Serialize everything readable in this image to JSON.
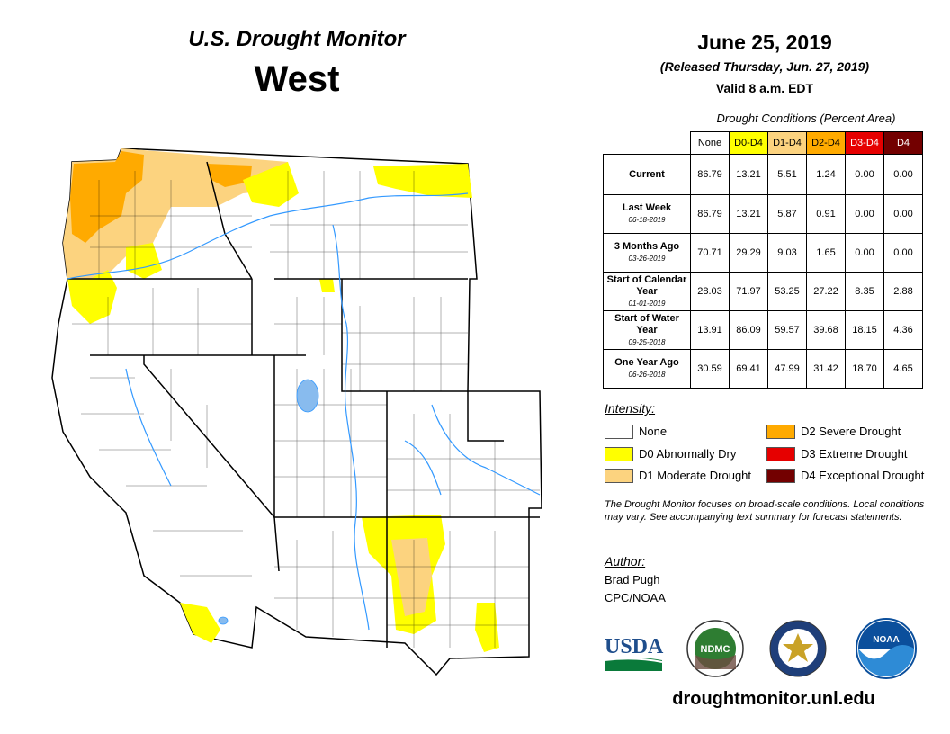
{
  "header": {
    "title": "U.S. Drought Monitor",
    "region": "West",
    "date": "June 25, 2019",
    "released": "(Released Thursday, Jun. 27, 2019)",
    "valid": "Valid 8 a.m. EDT"
  },
  "table": {
    "caption": "Drought Conditions (Percent Area)",
    "columns": [
      "None",
      "D0-D4",
      "D1-D4",
      "D2-D4",
      "D3-D4",
      "D4"
    ],
    "rows": [
      {
        "label": "Current",
        "sublabel": "",
        "values": [
          "86.79",
          "13.21",
          "5.51",
          "1.24",
          "0.00",
          "0.00"
        ]
      },
      {
        "label": "Last Week",
        "sublabel": "06-18-2019",
        "values": [
          "86.79",
          "13.21",
          "5.87",
          "0.91",
          "0.00",
          "0.00"
        ]
      },
      {
        "label": "3 Months Ago",
        "sublabel": "03-26-2019",
        "values": [
          "70.71",
          "29.29",
          "9.03",
          "1.65",
          "0.00",
          "0.00"
        ]
      },
      {
        "label": "Start of Calendar Year",
        "sublabel": "01-01-2019",
        "values": [
          "28.03",
          "71.97",
          "53.25",
          "27.22",
          "8.35",
          "2.88"
        ]
      },
      {
        "label": "Start of Water Year",
        "sublabel": "09-25-2018",
        "values": [
          "13.91",
          "86.09",
          "59.57",
          "39.68",
          "18.15",
          "4.36"
        ]
      },
      {
        "label": "One Year Ago",
        "sublabel": "06-26-2018",
        "values": [
          "30.59",
          "69.41",
          "47.99",
          "31.42",
          "18.70",
          "4.65"
        ]
      }
    ]
  },
  "legend": {
    "title": "Intensity:",
    "items": [
      {
        "label": "None",
        "color": "#ffffff"
      },
      {
        "label": "D0 Abnormally Dry",
        "color": "#ffff00"
      },
      {
        "label": "D1 Moderate Drought",
        "color": "#fcd37f"
      },
      {
        "label": "D2 Severe Drought",
        "color": "#ffaa00"
      },
      {
        "label": "D3 Extreme Drought",
        "color": "#e60000"
      },
      {
        "label": "D4 Exceptional Drought",
        "color": "#730000"
      }
    ]
  },
  "note": "The Drought Monitor focuses on broad-scale conditions. Local conditions may vary. See accompanying text summary for forecast statements.",
  "author": {
    "label": "Author:",
    "name": "Brad Pugh",
    "org": "CPC/NOAA"
  },
  "logos": {
    "usda": "USDA",
    "ndmc": "NDMC",
    "noaa": "NOAA"
  },
  "url": "droughtmonitor.unl.edu",
  "colors": {
    "d0": "#ffff00",
    "d1": "#fcd37f",
    "d2": "#ffaa00",
    "d3": "#e60000",
    "d4": "#730000",
    "water": "#3399ff",
    "lake": "#88bbee"
  }
}
